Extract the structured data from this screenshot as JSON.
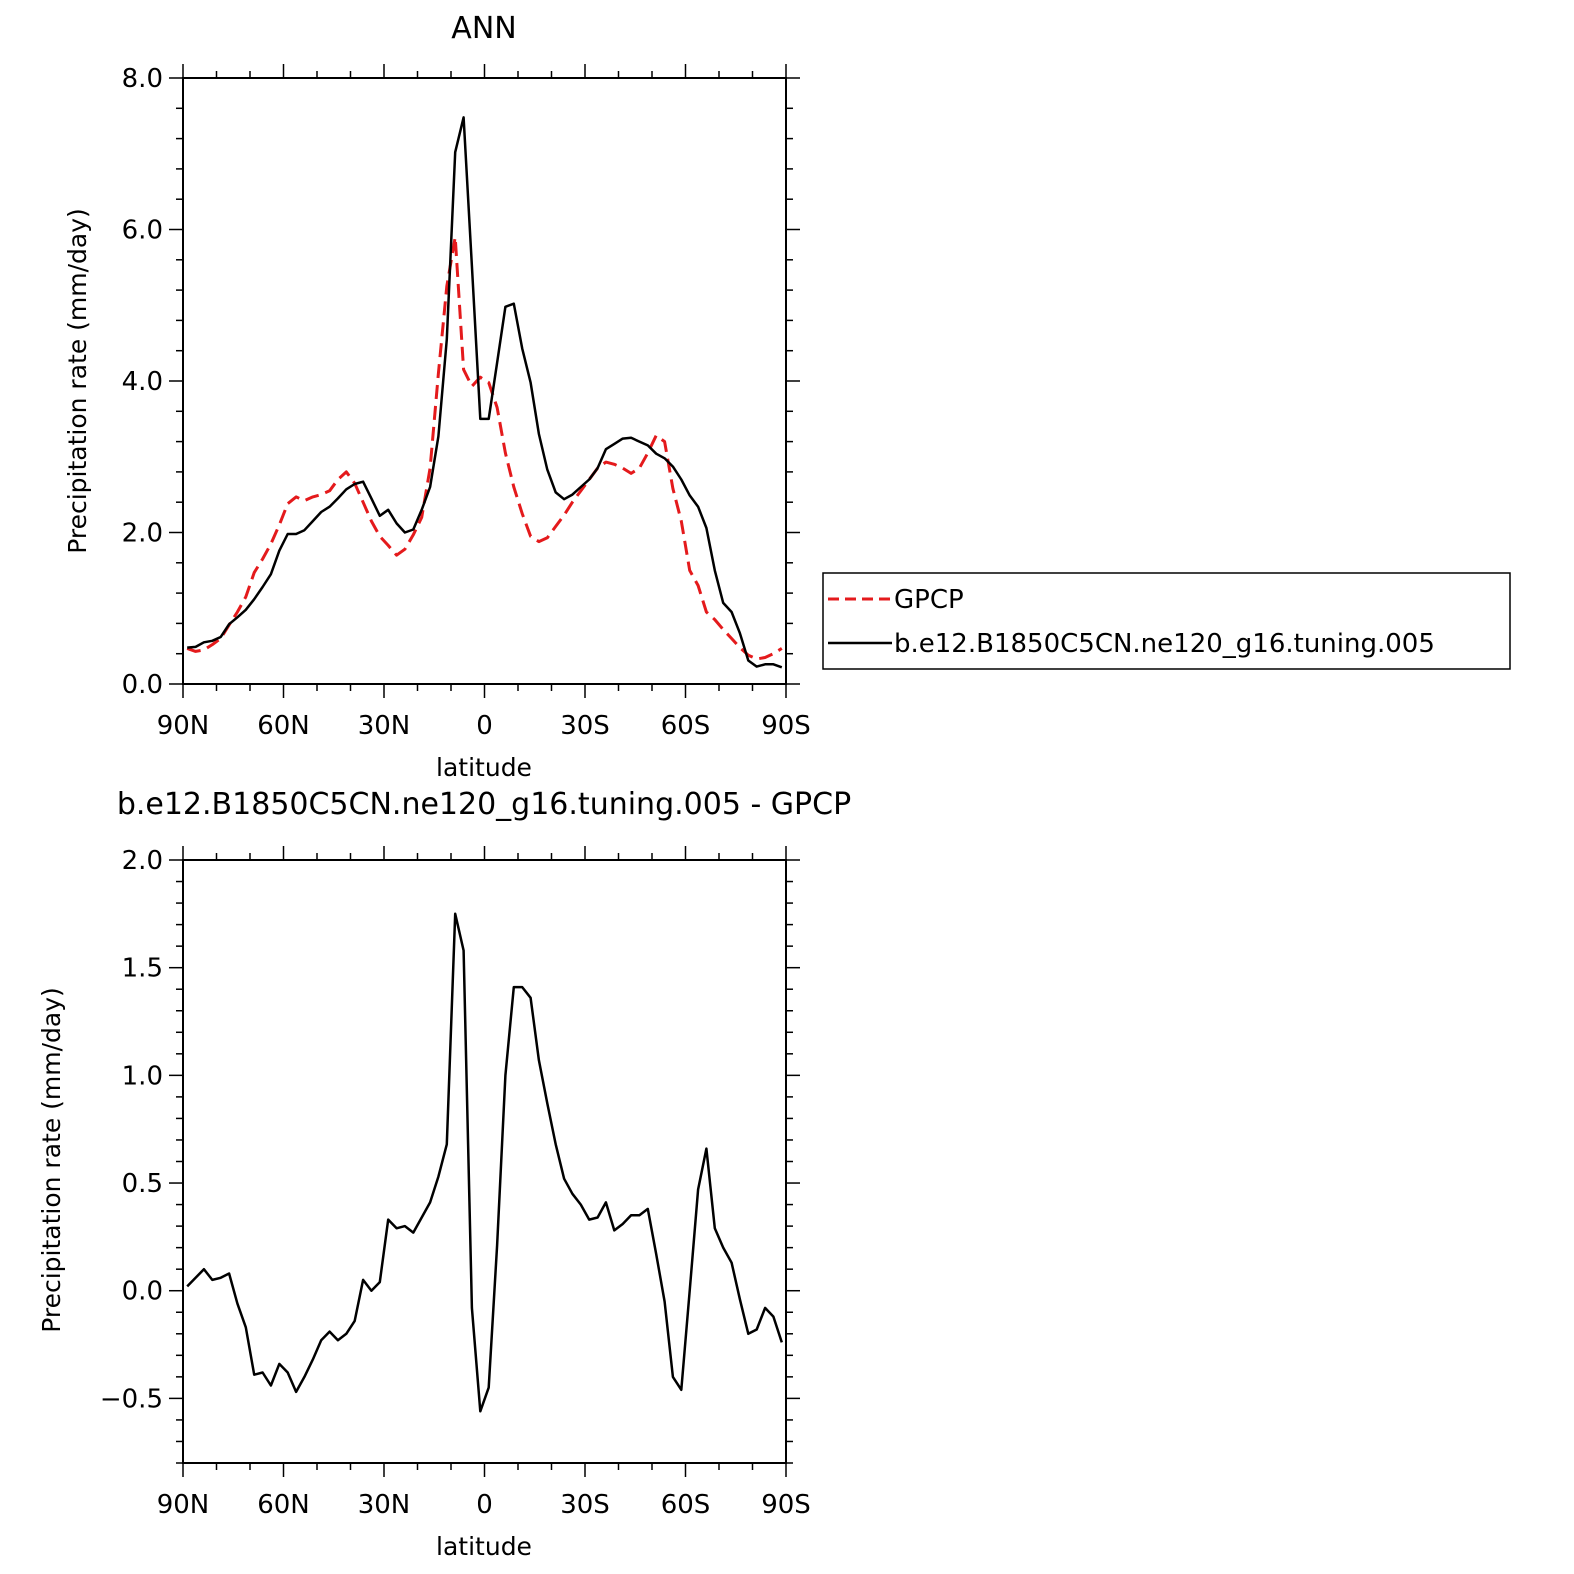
{
  "chart_data": [
    {
      "type": "line",
      "title": "ANN",
      "xlabel": "latitude",
      "ylabel": "Precipitation rate (mm/day)",
      "xlim": [
        90,
        -90
      ],
      "ylim": [
        0,
        8
      ],
      "x_ticks": [
        90,
        60,
        30,
        0,
        -30,
        -60,
        -90
      ],
      "x_tick_labels": [
        "90N",
        "60N",
        "30N",
        "0",
        "30S",
        "60S",
        "90S"
      ],
      "y_ticks": [
        0,
        2,
        4,
        6,
        8
      ],
      "y_tick_labels": [
        "0.0",
        "2.0",
        "4.0",
        "6.0",
        "8.0"
      ],
      "grid": false,
      "legend": "right",
      "series": [
        {
          "name": "GPCP",
          "color": "#e41a1c",
          "dash": "dashed",
          "x": [
            88.75,
            86.25,
            83.75,
            81.25,
            78.75,
            76.25,
            73.75,
            71.25,
            68.75,
            66.25,
            63.75,
            61.25,
            58.75,
            56.25,
            53.75,
            51.25,
            48.75,
            46.25,
            43.75,
            41.25,
            38.75,
            36.25,
            33.75,
            31.25,
            28.75,
            26.25,
            23.75,
            21.25,
            18.75,
            16.25,
            13.75,
            11.25,
            8.75,
            6.25,
            3.75,
            1.25,
            -1.25,
            -3.75,
            -6.25,
            -8.75,
            -11.25,
            -13.75,
            -16.25,
            -18.75,
            -21.25,
            -23.75,
            -26.25,
            -28.75,
            -31.25,
            -33.75,
            -36.25,
            -38.75,
            -41.25,
            -43.75,
            -46.25,
            -48.75,
            -51.25,
            -53.75,
            -56.25,
            -58.75,
            -61.25,
            -63.75,
            -66.25,
            -68.75,
            -71.25,
            -73.75,
            -76.25,
            -78.75,
            -81.25,
            -83.75,
            -86.25,
            -88.75
          ],
          "y": [
            0.47,
            0.43,
            0.45,
            0.52,
            0.6,
            0.78,
            0.95,
            1.15,
            1.47,
            1.65,
            1.85,
            2.1,
            2.38,
            2.47,
            2.42,
            2.47,
            2.5,
            2.55,
            2.7,
            2.8,
            2.65,
            2.4,
            2.15,
            1.95,
            1.83,
            1.7,
            1.78,
            1.97,
            2.2,
            2.85,
            4.1,
            5.25,
            5.9,
            4.15,
            3.93,
            4.05,
            3.98,
            3.65,
            3.05,
            2.6,
            2.25,
            1.95,
            1.88,
            1.93,
            2.08,
            2.23,
            2.4,
            2.55,
            2.7,
            2.85,
            2.93,
            2.9,
            2.85,
            2.78,
            2.85,
            3.05,
            3.28,
            3.2,
            2.58,
            2.15,
            1.5,
            1.3,
            0.95,
            0.85,
            0.72,
            0.6,
            0.48,
            0.38,
            0.33,
            0.35,
            0.4,
            0.47
          ]
        },
        {
          "name": "b.e12.B1850C5CN.ne120_g16.tuning.005",
          "color": "#000000",
          "dash": "solid",
          "x": [
            88.75,
            86.25,
            83.75,
            81.25,
            78.75,
            76.25,
            73.75,
            71.25,
            68.75,
            66.25,
            63.75,
            61.25,
            58.75,
            56.25,
            53.75,
            51.25,
            48.75,
            46.25,
            43.75,
            41.25,
            38.75,
            36.25,
            33.75,
            31.25,
            28.75,
            26.25,
            23.75,
            21.25,
            18.75,
            16.25,
            13.75,
            11.25,
            8.75,
            6.25,
            3.75,
            1.25,
            -1.25,
            -3.75,
            -6.25,
            -8.75,
            -11.25,
            -13.75,
            -16.25,
            -18.75,
            -21.25,
            -23.75,
            -26.25,
            -28.75,
            -31.25,
            -33.75,
            -36.25,
            -38.75,
            -41.25,
            -43.75,
            -46.25,
            -48.75,
            -51.25,
            -53.75,
            -56.25,
            -58.75,
            -61.25,
            -63.75,
            -66.25,
            -68.75,
            -71.25,
            -73.75,
            -76.25,
            -78.75,
            -81.25,
            -83.75,
            -86.25,
            -88.75
          ],
          "y": [
            0.48,
            0.49,
            0.55,
            0.57,
            0.62,
            0.79,
            0.88,
            0.98,
            1.12,
            1.28,
            1.45,
            1.76,
            1.98,
            1.98,
            2.03,
            2.15,
            2.27,
            2.34,
            2.45,
            2.57,
            2.64,
            2.67,
            2.45,
            2.22,
            2.3,
            2.12,
            2.0,
            2.04,
            2.3,
            2.6,
            3.27,
            4.55,
            7.02,
            7.48,
            5.52,
            3.5,
            3.5,
            4.24,
            4.98,
            5.02,
            4.43,
            3.98,
            3.3,
            2.83,
            2.53,
            2.44,
            2.5,
            2.6,
            2.7,
            2.85,
            3.1,
            3.17,
            3.24,
            3.25,
            3.2,
            3.15,
            3.04,
            2.98,
            2.87,
            2.7,
            2.49,
            2.34,
            2.06,
            1.5,
            1.07,
            0.95,
            0.67,
            0.31,
            0.23,
            0.26,
            0.26,
            0.22
          ]
        }
      ]
    },
    {
      "type": "line",
      "title": "b.e12.B1850C5CN.ne120_g16.tuning.005 - GPCP",
      "xlabel": "latitude",
      "ylabel": "Precipitation rate (mm/day)",
      "xlim": [
        90,
        -90
      ],
      "ylim": [
        -0.8,
        2.0
      ],
      "x_ticks": [
        90,
        60,
        30,
        0,
        -30,
        -60,
        -90
      ],
      "x_tick_labels": [
        "90N",
        "60N",
        "30N",
        "0",
        "30S",
        "60S",
        "90S"
      ],
      "y_ticks": [
        -0.5,
        0,
        0.5,
        1.0,
        1.5,
        2.0
      ],
      "y_tick_labels": [
        "-0.5",
        "0.0",
        "0.5",
        "1.0",
        "1.5",
        "2.0"
      ],
      "grid": false,
      "legend": "none",
      "series": [
        {
          "color": "#000000",
          "dash": "solid",
          "x": [
            88.75,
            86.25,
            83.75,
            81.25,
            78.75,
            76.25,
            73.75,
            71.25,
            68.75,
            66.25,
            63.75,
            61.25,
            58.75,
            56.25,
            53.75,
            51.25,
            48.75,
            46.25,
            43.75,
            41.25,
            38.75,
            36.25,
            33.75,
            31.25,
            28.75,
            26.25,
            23.75,
            21.25,
            18.75,
            16.25,
            13.75,
            11.25,
            8.75,
            6.25,
            3.75,
            1.25,
            -1.25,
            -3.75,
            -6.25,
            -8.75,
            -11.25,
            -13.75,
            -16.25,
            -18.75,
            -21.25,
            -23.75,
            -26.25,
            -28.75,
            -31.25,
            -33.75,
            -36.25,
            -38.75,
            -41.25,
            -43.75,
            -46.25,
            -48.75,
            -51.25,
            -53.75,
            -56.25,
            -58.75,
            -61.25,
            -63.75,
            -66.25,
            -68.75,
            -71.25,
            -73.75,
            -76.25,
            -78.75,
            -81.25,
            -83.75,
            -86.25,
            -88.75
          ],
          "y": [
            0.02,
            0.06,
            0.1,
            0.05,
            0.06,
            0.08,
            -0.06,
            -0.17,
            -0.39,
            -0.38,
            -0.44,
            -0.34,
            -0.38,
            -0.47,
            -0.4,
            -0.32,
            -0.23,
            -0.19,
            -0.23,
            -0.2,
            -0.14,
            0.05,
            0.0,
            0.04,
            0.33,
            0.29,
            0.3,
            0.27,
            0.34,
            0.41,
            0.53,
            0.68,
            1.75,
            1.58,
            -0.08,
            -0.56,
            -0.45,
            0.21,
            1.0,
            1.41,
            1.41,
            1.36,
            1.07,
            0.87,
            0.68,
            0.52,
            0.45,
            0.4,
            0.33,
            0.34,
            0.41,
            0.28,
            0.31,
            0.35,
            0.35,
            0.38,
            0.17,
            -0.05,
            -0.4,
            -0.46,
            0.0,
            0.47,
            0.66,
            0.29,
            0.2,
            0.13,
            -0.04,
            -0.2,
            -0.18,
            -0.08,
            -0.12,
            -0.24
          ]
        }
      ]
    }
  ]
}
